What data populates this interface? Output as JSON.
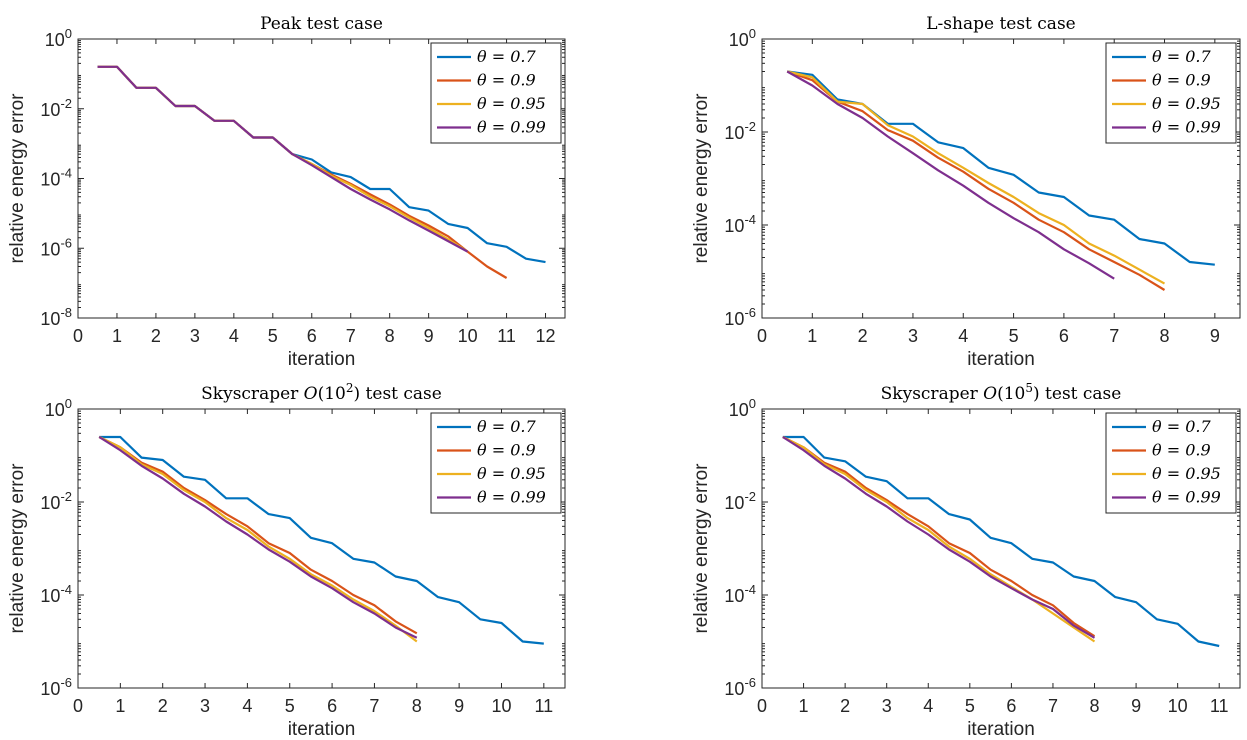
{
  "chart_data": [
    {
      "type": "line",
      "title": "Peak test case",
      "xlabel": "iteration",
      "ylabel": "relative energy error",
      "xlim": [
        0,
        12.5
      ],
      "ylim": [
        1e-08,
        1
      ],
      "yscale": "log",
      "xticks": [
        "0",
        "1",
        "2",
        "3",
        "4",
        "5",
        "6",
        "7",
        "8",
        "9",
        "10",
        "11",
        "12"
      ],
      "yticks": [
        "10^-8",
        "10^-6",
        "10^-4",
        "10^-2",
        "10^0"
      ],
      "legend_position": "top-right",
      "series": [
        {
          "name": "θ = 0.7",
          "color": "#0072BD",
          "x": [
            0.5,
            1,
            1.5,
            2,
            2.5,
            3,
            3.5,
            4,
            4.5,
            5,
            5.5,
            6,
            6.5,
            7,
            7.5,
            8,
            8.5,
            9,
            9.5,
            10,
            10.5,
            11,
            11.5,
            12
          ],
          "y": [
            0.16,
            0.16,
            0.04,
            0.04,
            0.012,
            0.012,
            0.0045,
            0.0045,
            0.0015,
            0.0015,
            0.0005,
            0.00035,
            0.00015,
            0.00011,
            5e-05,
            5e-05,
            1.5e-05,
            1.2e-05,
            5e-06,
            3.8e-06,
            1.4e-06,
            1.1e-06,
            5e-07,
            4e-07
          ]
        },
        {
          "name": "θ = 0.9",
          "color": "#D95319",
          "x": [
            0.5,
            1,
            1.5,
            2,
            2.5,
            3,
            3.5,
            4,
            4.5,
            5,
            5.5,
            6,
            6.5,
            7,
            7.5,
            8,
            8.5,
            9,
            9.5,
            10,
            10.5,
            11
          ],
          "y": [
            0.16,
            0.16,
            0.04,
            0.04,
            0.012,
            0.012,
            0.0045,
            0.0045,
            0.0015,
            0.0015,
            0.0005,
            0.00026,
            0.00013,
            7e-05,
            3.5e-05,
            1.8e-05,
            8.5e-06,
            4.5e-06,
            2.2e-06,
            8e-07,
            3e-07,
            1.4e-07
          ]
        },
        {
          "name": "θ = 0.95",
          "color": "#EDB120",
          "x": [
            0.5,
            1,
            1.5,
            2,
            2.5,
            3,
            3.5,
            4,
            4.5,
            5,
            5.5,
            6,
            6.5,
            7,
            7.5,
            8,
            8.5,
            9,
            9.5,
            10
          ],
          "y": [
            0.16,
            0.16,
            0.04,
            0.04,
            0.012,
            0.012,
            0.0045,
            0.0045,
            0.0015,
            0.0015,
            0.0005,
            0.00026,
            0.00012,
            6.5e-05,
            3e-05,
            1.6e-05,
            7.5e-06,
            3.8e-06,
            1.8e-06,
            8e-07
          ]
        },
        {
          "name": "θ = 0.99",
          "color": "#7E2F8E",
          "x": [
            0.5,
            1,
            1.5,
            2,
            2.5,
            3,
            3.5,
            4,
            4.5,
            5,
            5.5,
            6,
            6.5,
            7,
            7.5,
            8,
            8.5,
            9,
            9.5,
            10
          ],
          "y": [
            0.16,
            0.16,
            0.04,
            0.04,
            0.012,
            0.012,
            0.0045,
            0.0045,
            0.0015,
            0.0015,
            0.0005,
            0.00024,
            0.00011,
            5e-05,
            2.5e-05,
            1.3e-05,
            6.3e-06,
            3.2e-06,
            1.6e-06,
            8e-07
          ]
        }
      ]
    },
    {
      "type": "line",
      "title": "L-shape test case",
      "xlabel": "iteration",
      "ylabel": "relative energy error",
      "xlim": [
        0,
        9.5
      ],
      "ylim": [
        1e-06,
        1
      ],
      "yscale": "log",
      "xticks": [
        "0",
        "1",
        "2",
        "3",
        "4",
        "5",
        "6",
        "7",
        "8",
        "9"
      ],
      "yticks": [
        "10^-6",
        "10^-4",
        "10^-2",
        "10^0"
      ],
      "legend_position": "top-right",
      "series": [
        {
          "name": "θ = 0.7",
          "color": "#0072BD",
          "x": [
            0.5,
            1,
            1.5,
            2,
            2.5,
            3,
            3.5,
            4,
            4.5,
            5,
            5.5,
            6,
            6.5,
            7,
            7.5,
            8,
            8.5,
            9
          ],
          "y": [
            0.2,
            0.17,
            0.05,
            0.04,
            0.015,
            0.015,
            0.006,
            0.0045,
            0.0017,
            0.0012,
            0.0005,
            0.0004,
            0.00016,
            0.00013,
            5e-05,
            4e-05,
            1.6e-05,
            1.4e-05
          ]
        },
        {
          "name": "θ = 0.9",
          "color": "#D95319",
          "x": [
            0.5,
            1,
            1.5,
            2,
            2.5,
            3,
            3.5,
            4,
            4.5,
            5,
            5.5,
            6,
            6.5,
            7,
            7.5,
            8
          ],
          "y": [
            0.2,
            0.13,
            0.045,
            0.028,
            0.011,
            0.0065,
            0.0028,
            0.0014,
            0.0006,
            0.0003,
            0.00013,
            7e-05,
            3e-05,
            1.6e-05,
            8.5e-06,
            4e-06
          ]
        },
        {
          "name": "θ = 0.95",
          "color": "#EDB120",
          "x": [
            0.5,
            1,
            1.5,
            2,
            2.5,
            3,
            3.5,
            4,
            4.5,
            5,
            5.5,
            6,
            6.5,
            7,
            7.5,
            8
          ],
          "y": [
            0.2,
            0.15,
            0.045,
            0.04,
            0.014,
            0.008,
            0.0035,
            0.0017,
            0.0008,
            0.0004,
            0.00018,
            0.0001,
            4e-05,
            2.2e-05,
            1.1e-05,
            5.5e-06
          ]
        },
        {
          "name": "θ = 0.99",
          "color": "#7E2F8E",
          "x": [
            0.5,
            1,
            1.5,
            2,
            2.5,
            3,
            3.5,
            4,
            4.5,
            5,
            5.5,
            6,
            6.5,
            7
          ],
          "y": [
            0.2,
            0.1,
            0.04,
            0.02,
            0.008,
            0.0035,
            0.0015,
            0.0007,
            0.0003,
            0.00014,
            7e-05,
            3e-05,
            1.5e-05,
            7e-06
          ]
        }
      ]
    },
    {
      "type": "line",
      "title": "Skyscraper O(10^2) test case",
      "xlabel": "iteration",
      "ylabel": "relative energy error",
      "xlim": [
        0,
        11.5
      ],
      "ylim": [
        1e-06,
        1
      ],
      "yscale": "log",
      "xticks": [
        "0",
        "1",
        "2",
        "3",
        "4",
        "5",
        "6",
        "7",
        "8",
        "9",
        "10",
        "11"
      ],
      "yticks": [
        "10^-6",
        "10^-4",
        "10^-2",
        "10^0"
      ],
      "legend_position": "top-right",
      "series": [
        {
          "name": "θ = 0.7",
          "color": "#0072BD",
          "x": [
            0.5,
            1,
            1.5,
            2,
            2.5,
            3,
            3.5,
            4,
            4.5,
            5,
            5.5,
            6,
            6.5,
            7,
            7.5,
            8,
            8.5,
            9,
            9.5,
            10,
            10.5,
            11
          ],
          "y": [
            0.25,
            0.25,
            0.09,
            0.08,
            0.035,
            0.03,
            0.012,
            0.012,
            0.0055,
            0.0045,
            0.0017,
            0.0013,
            0.0006,
            0.0005,
            0.00025,
            0.0002,
            9e-05,
            7e-05,
            3e-05,
            2.5e-05,
            1e-05,
            9e-06
          ]
        },
        {
          "name": "θ = 0.9",
          "color": "#D95319",
          "x": [
            0.5,
            1,
            1.5,
            2,
            2.5,
            3,
            3.5,
            4,
            4.5,
            5,
            5.5,
            6,
            6.5,
            7,
            7.5,
            8
          ],
          "y": [
            0.25,
            0.15,
            0.07,
            0.045,
            0.02,
            0.011,
            0.0055,
            0.003,
            0.0013,
            0.0008,
            0.00035,
            0.0002,
            0.0001,
            6e-05,
            2.7e-05,
            1.5e-05
          ]
        },
        {
          "name": "θ = 0.95",
          "color": "#EDB120",
          "x": [
            0.5,
            1,
            1.5,
            2,
            2.5,
            3,
            3.5,
            4,
            4.5,
            5,
            5.5,
            6,
            6.5,
            7,
            7.5,
            8
          ],
          "y": [
            0.25,
            0.15,
            0.065,
            0.04,
            0.018,
            0.01,
            0.0045,
            0.0025,
            0.0011,
            0.0006,
            0.00028,
            0.00016,
            8e-05,
            4.5e-05,
            2.2e-05,
            1e-05
          ]
        },
        {
          "name": "θ = 0.99",
          "color": "#7E2F8E",
          "x": [
            0.5,
            1,
            1.5,
            2,
            2.5,
            3,
            3.5,
            4,
            4.5,
            5,
            5.5,
            6,
            6.5,
            7,
            7.5,
            8
          ],
          "y": [
            0.25,
            0.13,
            0.06,
            0.032,
            0.015,
            0.008,
            0.0038,
            0.002,
            0.00095,
            0.00052,
            0.00025,
            0.00014,
            7e-05,
            4e-05,
            2e-05,
            1.2e-05
          ]
        }
      ]
    },
    {
      "type": "line",
      "title": "Skyscraper O(10^5) test case",
      "xlabel": "iteration",
      "ylabel": "relative energy error",
      "xlim": [
        0,
        11.5
      ],
      "ylim": [
        1e-06,
        1
      ],
      "yscale": "log",
      "xticks": [
        "0",
        "1",
        "2",
        "3",
        "4",
        "5",
        "6",
        "7",
        "8",
        "9",
        "10",
        "11"
      ],
      "yticks": [
        "10^-6",
        "10^-4",
        "10^-2",
        "10^0"
      ],
      "legend_position": "top-right",
      "series": [
        {
          "name": "θ = 0.7",
          "color": "#0072BD",
          "x": [
            0.5,
            1,
            1.5,
            2,
            2.5,
            3,
            3.5,
            4,
            4.5,
            5,
            5.5,
            6,
            6.5,
            7,
            7.5,
            8,
            8.5,
            9,
            9.5,
            10,
            10.5,
            11
          ],
          "y": [
            0.25,
            0.25,
            0.09,
            0.075,
            0.035,
            0.028,
            0.012,
            0.012,
            0.0055,
            0.0042,
            0.0017,
            0.0013,
            0.0006,
            0.0005,
            0.00025,
            0.0002,
            9e-05,
            7e-05,
            3e-05,
            2.4e-05,
            1e-05,
            8e-06
          ]
        },
        {
          "name": "θ = 0.9",
          "color": "#D95319",
          "x": [
            0.5,
            1,
            1.5,
            2,
            2.5,
            3,
            3.5,
            4,
            4.5,
            5,
            5.5,
            6,
            6.5,
            7,
            7.5,
            8
          ],
          "y": [
            0.25,
            0.15,
            0.07,
            0.045,
            0.02,
            0.011,
            0.0055,
            0.003,
            0.0013,
            0.0008,
            0.00035,
            0.0002,
            0.0001,
            6e-05,
            2.5e-05,
            1.3e-05
          ]
        },
        {
          "name": "θ = 0.95",
          "color": "#EDB120",
          "x": [
            0.5,
            1,
            1.5,
            2,
            2.5,
            3,
            3.5,
            4,
            4.5,
            5,
            5.5,
            6,
            6.5,
            7,
            7.5,
            8
          ],
          "y": [
            0.25,
            0.15,
            0.065,
            0.04,
            0.018,
            0.01,
            0.0045,
            0.0025,
            0.0011,
            0.0006,
            0.00028,
            0.00015,
            8e-05,
            4e-05,
            2e-05,
            1e-05
          ]
        },
        {
          "name": "θ = 0.99",
          "color": "#7E2F8E",
          "x": [
            0.5,
            1,
            1.5,
            2,
            2.5,
            3,
            3.5,
            4,
            4.5,
            5,
            5.5,
            6,
            6.5,
            7,
            7.5,
            8
          ],
          "y": [
            0.25,
            0.13,
            0.06,
            0.032,
            0.015,
            0.008,
            0.0038,
            0.002,
            0.00095,
            0.00052,
            0.00025,
            0.00014,
            8e-05,
            5e-05,
            2.2e-05,
            1.2e-05
          ]
        }
      ]
    }
  ]
}
